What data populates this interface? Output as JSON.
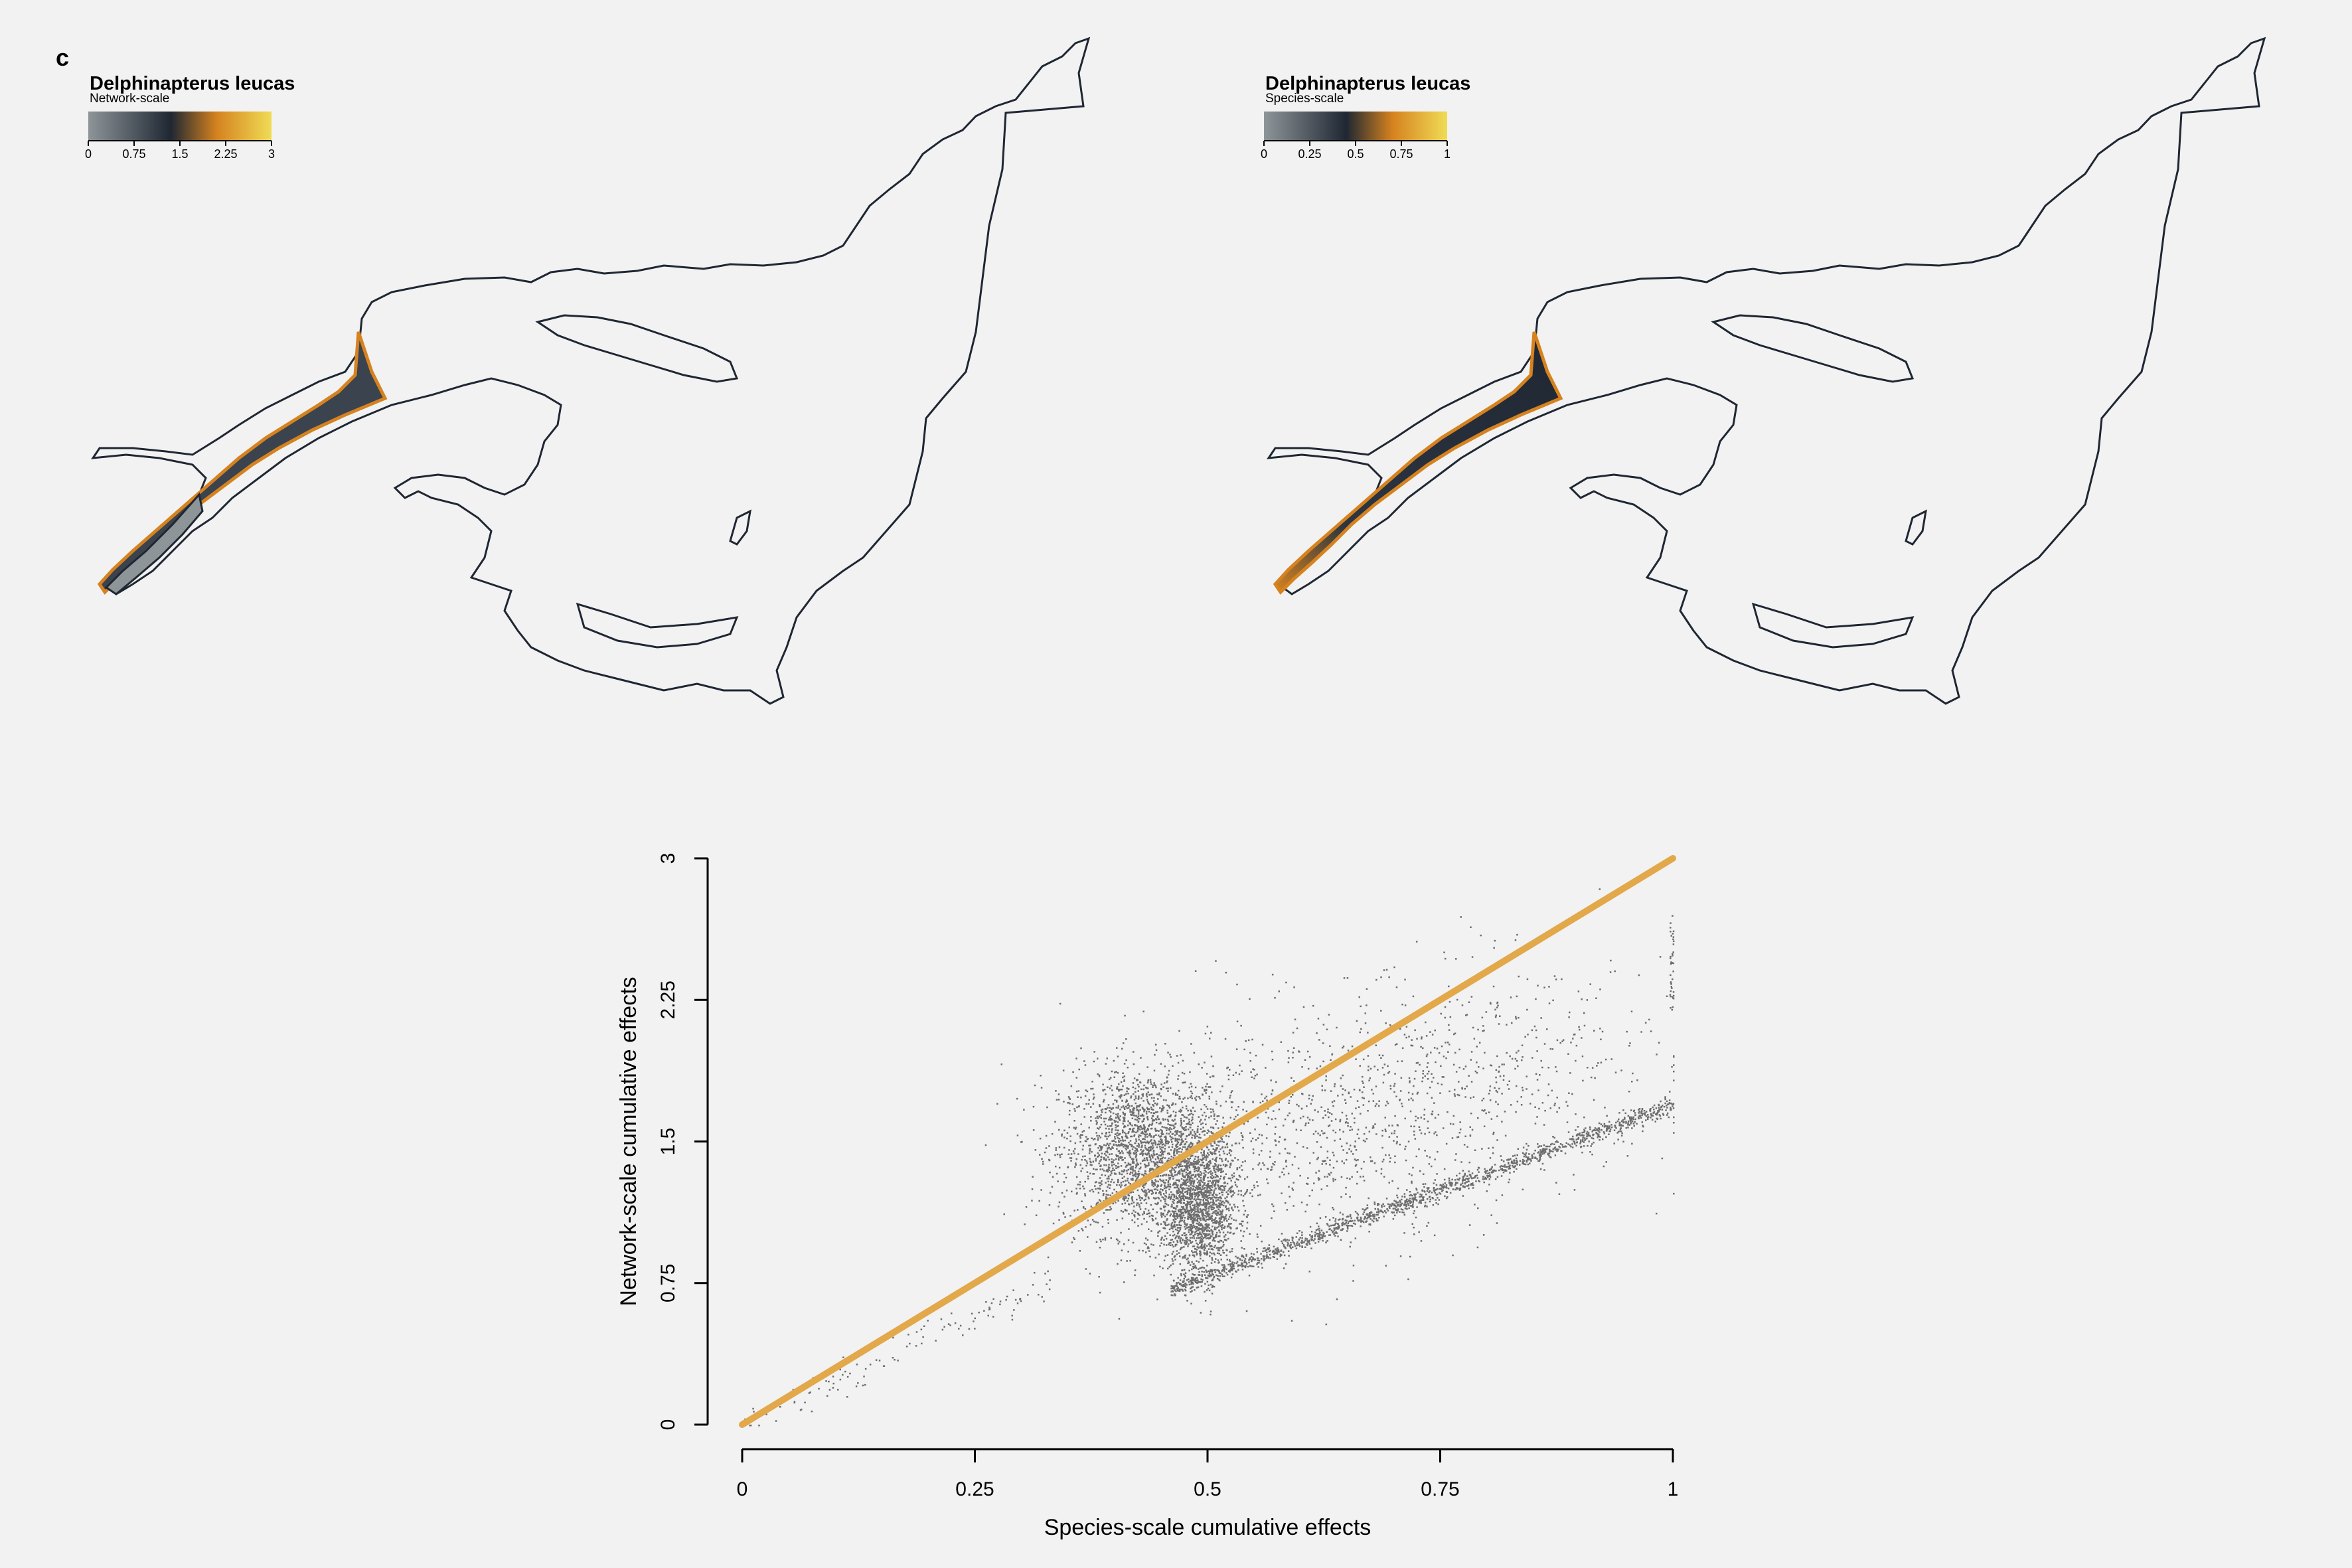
{
  "panel_label": "c",
  "maps": [
    {
      "title": "Delphinapterus leucas",
      "subtitle": "Network-scale",
      "ticks": [
        "0",
        "0.75",
        "1.5",
        "2.25",
        "3"
      ],
      "ramp": [
        "#8e9599",
        "#1f2733",
        "#d5821f",
        "#f0dc55"
      ]
    },
    {
      "title": "Delphinapterus leucas",
      "subtitle": "Species-scale",
      "ticks": [
        "0",
        "0.25",
        "0.5",
        "0.75",
        "1"
      ],
      "ramp": [
        "#8e9599",
        "#1f2733",
        "#d5821f",
        "#f0dc55"
      ]
    }
  ],
  "colors": {
    "background": "#f2f2f2",
    "outline": "#1f2733",
    "estuary_dark": "#2c3541",
    "estuary_grey": "#8e9599",
    "estuary_orange": "#d5821f",
    "fit_line": "#e2a84a",
    "points": "#000000"
  },
  "chart_data": {
    "type": "scatter",
    "xlabel": "Species-scale cumulative effects",
    "ylabel": "Network-scale cumulative effects",
    "xlim": [
      0,
      1
    ],
    "ylim": [
      0,
      3
    ],
    "xticks": [
      "0",
      "0.25",
      "0.5",
      "0.75",
      "1"
    ],
    "yticks": [
      "0",
      "0.75",
      "1.5",
      "2.25",
      "3"
    ],
    "reference_line": {
      "x": [
        0,
        1
      ],
      "y": [
        0,
        3
      ]
    },
    "clusters": [
      {
        "center": [
          0.43,
          1.45
        ],
        "spread": [
          0.045,
          0.22
        ],
        "points": 2200
      },
      {
        "center": [
          0.49,
          1.15
        ],
        "spread": [
          0.02,
          0.18
        ],
        "points": 1600
      },
      {
        "center": [
          0.62,
          1.55
        ],
        "spread": [
          0.09,
          0.3
        ],
        "points": 700
      },
      {
        "center": [
          0.8,
          1.85
        ],
        "spread": [
          0.1,
          0.3
        ],
        "points": 500
      }
    ],
    "band": {
      "x": [
        0.46,
        1.0
      ],
      "y_start": 0.72,
      "y_end": 1.7,
      "points": 1400
    },
    "low_tail": {
      "x": [
        0.0,
        0.33
      ],
      "slope": 2.3,
      "points": 120
    },
    "edge_column": {
      "x": 1.0,
      "y": [
        2.2,
        2.7
      ],
      "points": 40
    }
  }
}
